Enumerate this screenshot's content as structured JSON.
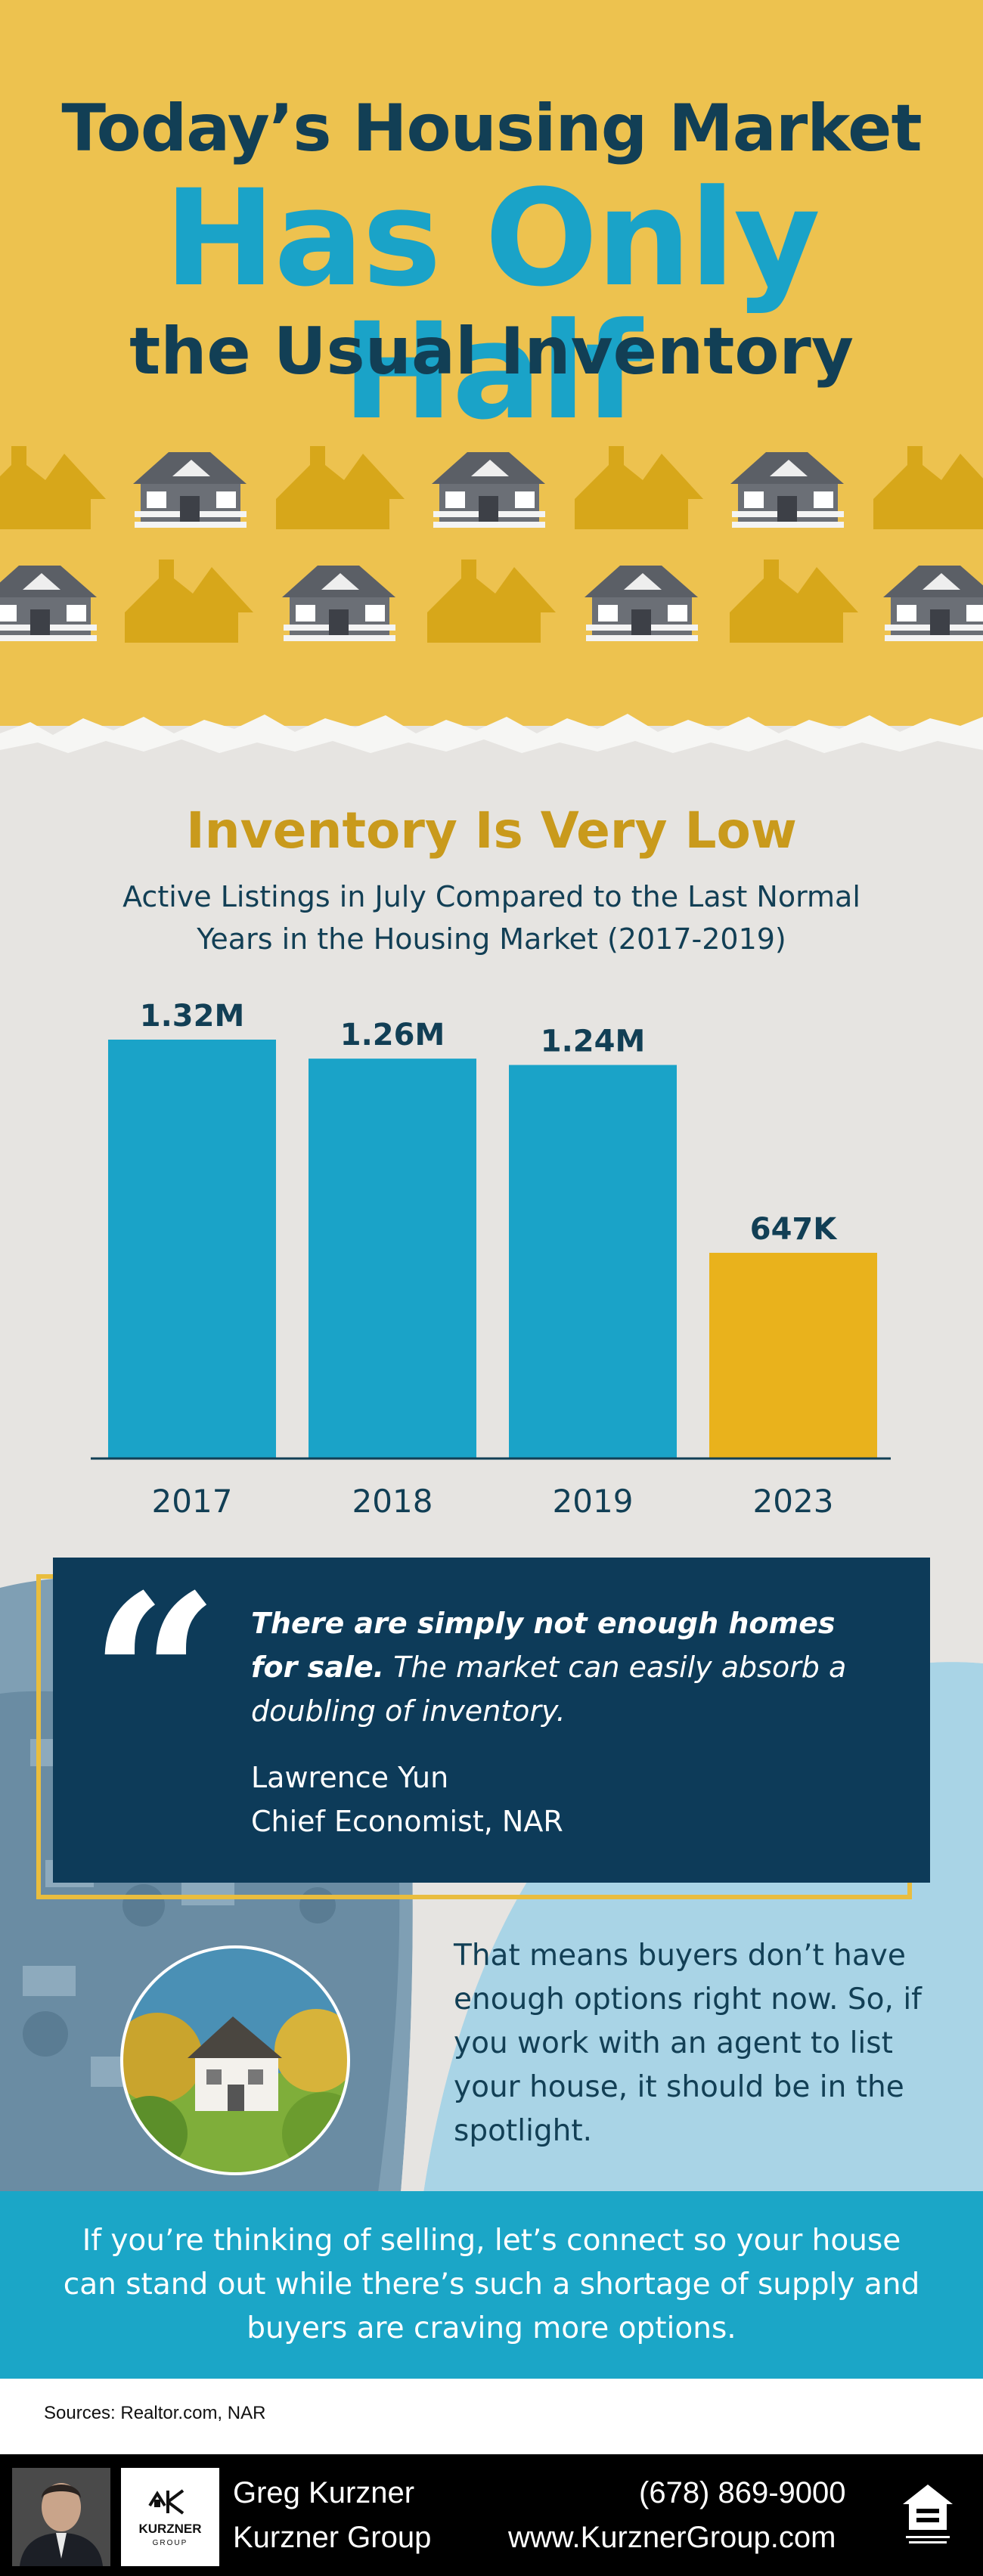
{
  "header": {
    "line1": "Today’s Housing Market",
    "line2": "Has Only Half",
    "line3": "the Usual Inventory"
  },
  "chart_data": {
    "type": "bar",
    "title": "Inventory Is Very Low",
    "subtitle_line1": "Active Listings in July Compared to the Last Normal",
    "subtitle_line2": "Years in the Housing Market (2017-2019)",
    "categories": [
      "2017",
      "2018",
      "2019",
      "2023"
    ],
    "values": [
      1.32,
      1.26,
      1.24,
      0.647
    ],
    "value_labels": [
      "1.32M",
      "1.26M",
      "1.24M",
      "647K"
    ],
    "unit": "millions of active listings",
    "colors": [
      "#1aa3c8",
      "#1aa3c8",
      "#1aa3c8",
      "#e9b21c"
    ],
    "ylim": [
      0,
      1.32
    ],
    "grid": false,
    "legend": "none"
  },
  "quote": {
    "bold_text": "There are simply not enough homes for sale.",
    "text": "The market can easily absorb a doubling of inventory.",
    "author_name": "Lawrence Yun",
    "author_title": "Chief Economist, NAR"
  },
  "explanation": "That means buyers don’t have enough options right now. So, if you work with an agent to list your house, it should be in the spotlight.",
  "cta": "If you’re thinking of selling, let’s connect so your house can stand out while there’s such a shortage of supply and buyers are craving more options.",
  "sources": "Sources: Realtor.com, NAR",
  "footer": {
    "agent_name": "Greg Kurzner",
    "company": "Kurzner Group",
    "phone": "(678) 869-9000",
    "website": "www.KurznerGroup.com",
    "logo_text": "KURZNER",
    "logo_sub": "GROUP"
  },
  "icons": {
    "quote": "quote-mark-icon",
    "house": "house-icon",
    "equal_housing": "equal-housing-icon"
  },
  "colors": {
    "navy": "#123f55",
    "teal": "#1aa3c8",
    "gold": "#e9b21c",
    "header_bg": "#edc24f"
  }
}
